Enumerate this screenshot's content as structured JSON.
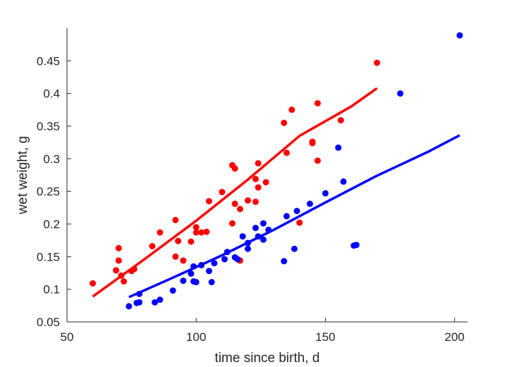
{
  "chart_data": {
    "type": "scatter",
    "title": "",
    "xlabel": "time since birth, d",
    "ylabel": "wet weight, g",
    "xlim": [
      50,
      205
    ],
    "ylim": [
      0.05,
      0.5
    ],
    "x_ticks": [
      50,
      100,
      150,
      200
    ],
    "y_ticks": [
      0.05,
      0.1,
      0.15,
      0.2,
      0.25,
      0.3,
      0.35,
      0.4,
      0.45
    ],
    "x_tick_labels": [
      "50",
      "100",
      "150",
      "200"
    ],
    "y_tick_labels": [
      "0.05",
      "0.1",
      "0.15",
      "0.2",
      "0.25",
      "0.3",
      "0.35",
      "0.4",
      "0.45"
    ],
    "grid": false,
    "series": [
      {
        "color": "#ff0000",
        "points": [
          [
            60,
            0.109
          ],
          [
            69,
            0.129
          ],
          [
            70,
            0.163
          ],
          [
            70,
            0.144
          ],
          [
            71,
            0.121
          ],
          [
            72,
            0.112
          ],
          [
            75,
            0.128
          ],
          [
            76,
            0.131
          ],
          [
            83,
            0.166
          ],
          [
            86,
            0.187
          ],
          [
            92,
            0.206
          ],
          [
            92,
            0.15
          ],
          [
            93,
            0.174
          ],
          [
            95,
            0.144
          ],
          [
            98,
            0.173
          ],
          [
            100,
            0.195
          ],
          [
            100,
            0.187
          ],
          [
            102,
            0.187
          ],
          [
            104,
            0.188
          ],
          [
            105,
            0.235
          ],
          [
            110,
            0.249
          ],
          [
            114,
            0.29
          ],
          [
            114,
            0.201
          ],
          [
            115,
            0.285
          ],
          [
            115,
            0.231
          ],
          [
            117,
            0.223
          ],
          [
            117,
            0.144
          ],
          [
            120,
            0.236
          ],
          [
            123,
            0.269
          ],
          [
            123,
            0.234
          ],
          [
            124,
            0.293
          ],
          [
            124,
            0.256
          ],
          [
            127,
            0.264
          ],
          [
            134,
            0.355
          ],
          [
            135,
            0.309
          ],
          [
            137,
            0.375
          ],
          [
            140,
            0.202
          ],
          [
            145,
            0.326
          ],
          [
            145,
            0.324
          ],
          [
            147,
            0.385
          ],
          [
            147,
            0.297
          ],
          [
            156,
            0.359
          ],
          [
            170,
            0.447
          ]
        ],
        "fit": [
          [
            60,
            0.089
          ],
          [
            80,
            0.146
          ],
          [
            100,
            0.205
          ],
          [
            120,
            0.268
          ],
          [
            140,
            0.335
          ],
          [
            160,
            0.38
          ],
          [
            170,
            0.408
          ]
        ]
      },
      {
        "color": "#0000ff",
        "points": [
          [
            74,
            0.074
          ],
          [
            77,
            0.079
          ],
          [
            78,
            0.08
          ],
          [
            78,
            0.093
          ],
          [
            84,
            0.08
          ],
          [
            86,
            0.084
          ],
          [
            91,
            0.098
          ],
          [
            95,
            0.113
          ],
          [
            98,
            0.124
          ],
          [
            99,
            0.112
          ],
          [
            99,
            0.135
          ],
          [
            100,
            0.111
          ],
          [
            102,
            0.137
          ],
          [
            105,
            0.128
          ],
          [
            106,
            0.111
          ],
          [
            107,
            0.14
          ],
          [
            111,
            0.146
          ],
          [
            112,
            0.157
          ],
          [
            115,
            0.149
          ],
          [
            116,
            0.146
          ],
          [
            118,
            0.181
          ],
          [
            120,
            0.162
          ],
          [
            120,
            0.171
          ],
          [
            123,
            0.194
          ],
          [
            124,
            0.181
          ],
          [
            126,
            0.201
          ],
          [
            126,
            0.176
          ],
          [
            128,
            0.191
          ],
          [
            134,
            0.143
          ],
          [
            135,
            0.212
          ],
          [
            138,
            0.162
          ],
          [
            139,
            0.22
          ],
          [
            144,
            0.231
          ],
          [
            150,
            0.247
          ],
          [
            155,
            0.317
          ],
          [
            157,
            0.265
          ],
          [
            161,
            0.167
          ],
          [
            162,
            0.168
          ],
          [
            179,
            0.4
          ],
          [
            202,
            0.489
          ]
        ],
        "fit": [
          [
            74,
            0.088
          ],
          [
            90,
            0.116
          ],
          [
            110,
            0.152
          ],
          [
            130,
            0.191
          ],
          [
            150,
            0.233
          ],
          [
            170,
            0.274
          ],
          [
            190,
            0.311
          ],
          [
            202,
            0.336
          ]
        ]
      }
    ]
  }
}
